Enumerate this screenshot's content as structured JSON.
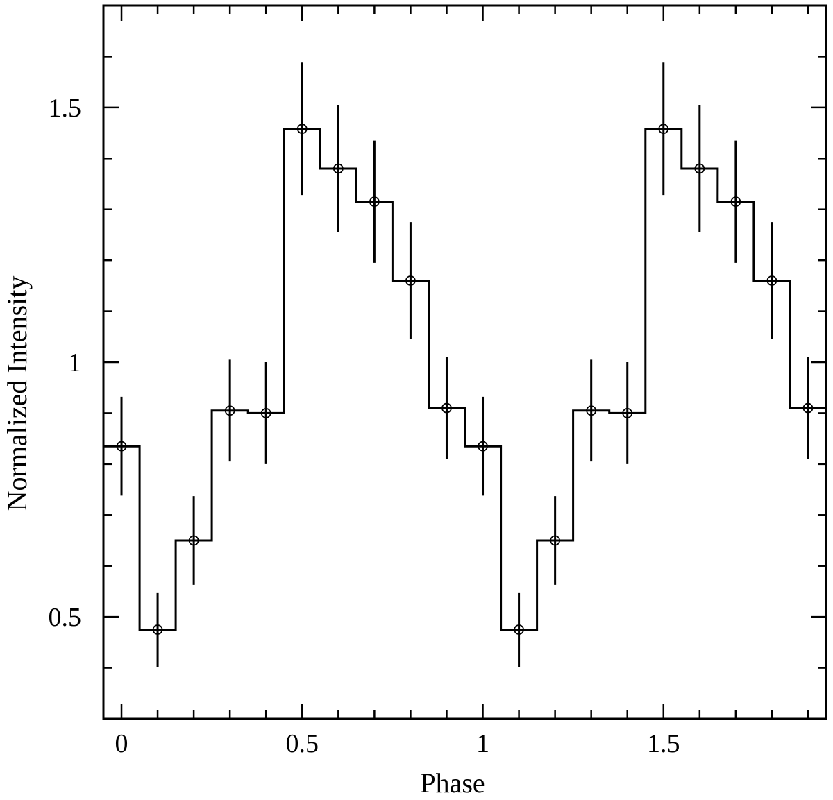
{
  "chart_data": {
    "type": "line",
    "style": "step-histogram-with-error-bars",
    "xlabel": "Phase",
    "ylabel": "Normalized Intensity",
    "xlim": [
      -0.05,
      1.95
    ],
    "ylim": [
      0.3,
      1.7
    ],
    "x_major_ticks": [
      0,
      0.5,
      1,
      1.5
    ],
    "x_tick_labels": [
      "0",
      "0.5",
      "1",
      "1.5"
    ],
    "x_minor_ticks": [
      0,
      0.1,
      0.2,
      0.3,
      0.4,
      0.5,
      0.6,
      0.7,
      0.8,
      0.9,
      1.0,
      1.1,
      1.2,
      1.3,
      1.4,
      1.5,
      1.6,
      1.7,
      1.8,
      1.9
    ],
    "y_major_ticks": [
      0.5,
      1,
      1.5
    ],
    "y_tick_labels": [
      "0.5",
      "1",
      "1.5"
    ],
    "y_minor_ticks": [
      0.4,
      0.6,
      0.7,
      0.8,
      0.9,
      1.1,
      1.2,
      1.3,
      1.4,
      1.6
    ],
    "bin_width": 0.1,
    "series": [
      {
        "x": [
          0,
          0.1,
          0.2,
          0.3,
          0.4,
          0.5,
          0.6,
          0.7,
          0.8,
          0.9,
          1.0,
          1.1,
          1.2,
          1.3,
          1.4,
          1.5,
          1.6,
          1.7,
          1.8,
          1.9
        ],
        "y": [
          0.835,
          0.475,
          0.65,
          0.905,
          0.9,
          1.458,
          1.38,
          1.315,
          1.16,
          0.91,
          0.835,
          0.475,
          0.65,
          0.905,
          0.9,
          1.458,
          1.38,
          1.315,
          1.16,
          0.91
        ],
        "yerr": [
          0.097,
          0.073,
          0.087,
          0.1,
          0.1,
          0.13,
          0.125,
          0.12,
          0.115,
          0.1,
          0.097,
          0.073,
          0.087,
          0.1,
          0.1,
          0.13,
          0.125,
          0.12,
          0.115,
          0.1
        ]
      }
    ],
    "grid": false,
    "legend": "none",
    "colors": {
      "line": "#000000",
      "background": "#ffffff"
    }
  }
}
